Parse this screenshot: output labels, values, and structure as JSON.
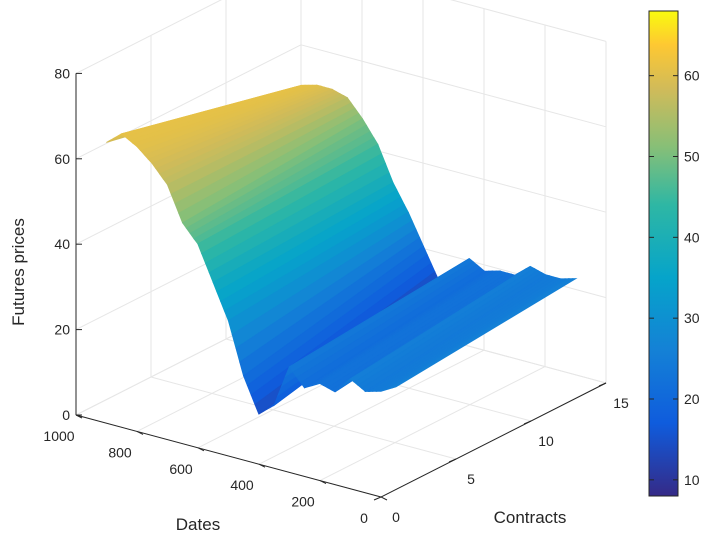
{
  "chart_data": {
    "type": "surface",
    "title": "",
    "xlabel": "Contracts",
    "ylabel": "Dates",
    "zlabel": "Futures prices",
    "xlim": [
      0,
      15
    ],
    "ylim": [
      0,
      1000
    ],
    "zlim": [
      0,
      80
    ],
    "x_ticks": [
      "0",
      "5",
      "10",
      "15"
    ],
    "y_ticks": [
      "0",
      "200",
      "400",
      "600",
      "800",
      "1000"
    ],
    "z_ticks": [
      "0",
      "20",
      "40",
      "60",
      "80"
    ],
    "grid": true,
    "colormap": "parula",
    "colorbar": {
      "ticks": [
        "10",
        "20",
        "30",
        "40",
        "50",
        "60"
      ],
      "range": [
        8,
        68
      ]
    },
    "contracts": [
      1,
      13
    ],
    "dates": [
      0,
      50,
      100,
      150,
      200,
      250,
      300,
      350,
      400,
      450,
      500,
      550,
      600,
      650,
      700,
      750,
      800,
      850,
      900,
      950
    ],
    "front_contract_prices": [
      24,
      22,
      21,
      23,
      19,
      20,
      18,
      22,
      12,
      9,
      17,
      29,
      37,
      45,
      49,
      57,
      61,
      64,
      66,
      63
    ],
    "back_contract_prices": [
      28,
      27,
      27,
      28,
      25,
      25,
      24,
      26,
      22,
      19,
      26,
      33,
      39,
      47,
      52,
      56,
      57,
      57,
      56,
      54
    ]
  },
  "colors": {
    "axis": "#262626",
    "grid": "#e6e6e6",
    "background": "#ffffff"
  }
}
